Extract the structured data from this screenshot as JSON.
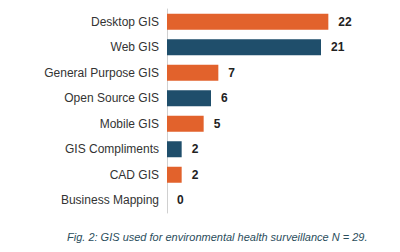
{
  "chart_data": {
    "type": "bar",
    "title": "Fig. 2: GIS used for environmental health surveillance N = 29.",
    "orientation": "horizontal",
    "categories": [
      "Desktop GIS",
      "Web GIS",
      "General Purpose GIS",
      "Open Source GIS",
      "Mobile GIS",
      "GIS Compliments",
      "CAD GIS",
      "Business Mapping"
    ],
    "values": [
      22,
      21,
      7,
      6,
      5,
      2,
      2,
      0
    ],
    "colors": [
      "#e2622c",
      "#1f4e6b",
      "#e2622c",
      "#1f4e6b",
      "#e2622c",
      "#1f4e6b",
      "#e2622c",
      "#1f4e6b"
    ],
    "xlim": [
      0,
      30
    ],
    "data_labels": true,
    "tick_labels": "y",
    "grid": false
  }
}
